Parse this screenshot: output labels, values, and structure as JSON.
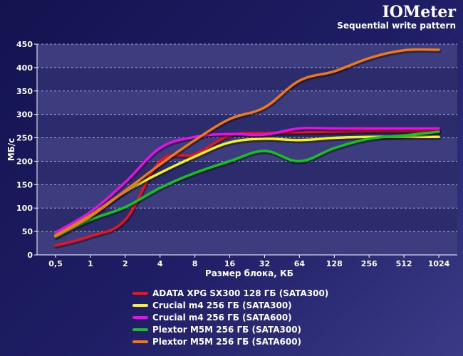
{
  "chart_data": {
    "type": "line",
    "title": "IOMeter",
    "subtitle": "Sequential write pattern",
    "xlabel": "Размер блока, КБ",
    "ylabel": "МБ/с",
    "categories": [
      "0,5",
      "1",
      "2",
      "4",
      "8",
      "16",
      "32",
      "64",
      "128",
      "256",
      "512",
      "1024"
    ],
    "ylim": [
      0,
      450
    ],
    "yticks": [
      0,
      50,
      100,
      150,
      200,
      250,
      300,
      350,
      400,
      450
    ],
    "grid": true,
    "legend_position": "bottom",
    "series": [
      {
        "name": "ADATA XPG SX300 128 ГБ (SATA300)",
        "color": "#e8141e",
        "values": [
          20,
          40,
          75,
          200,
          215,
          255,
          260,
          262,
          263,
          265,
          265,
          265
        ]
      },
      {
        "name": "Crucial m4 256 ГБ (SATA300)",
        "color": "#f4f41a",
        "values": [
          42,
          85,
          135,
          175,
          210,
          240,
          248,
          245,
          250,
          252,
          252,
          252
        ]
      },
      {
        "name": "Crucial m4 256 ГБ (SATA600)",
        "color": "#e610e6",
        "values": [
          48,
          92,
          155,
          228,
          252,
          258,
          257,
          270,
          270,
          270,
          270,
          270
        ]
      },
      {
        "name": "Plextor M5M 256 ГБ (SATA300)",
        "color": "#16c31e",
        "values": [
          38,
          75,
          102,
          143,
          175,
          200,
          222,
          200,
          228,
          248,
          255,
          263
        ]
      },
      {
        "name": "Plextor M5M 256 ГБ (SATA600)",
        "color": "#f07818",
        "values": [
          40,
          82,
          137,
          193,
          245,
          290,
          315,
          372,
          392,
          420,
          437,
          438
        ]
      }
    ]
  }
}
